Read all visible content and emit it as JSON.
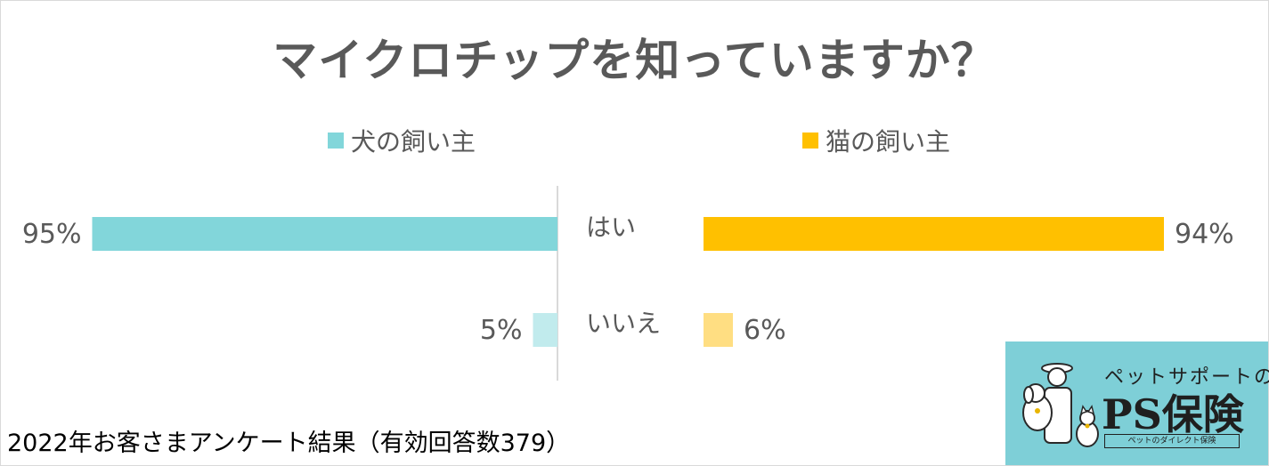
{
  "title": "マイクロチップを知っていますか？",
  "footer": "2022年お客さまアンケート結果（有効回答数379）",
  "colors": {
    "dog_yes": "#82d6da",
    "dog_no": "#c1ebed",
    "cat_yes": "#ffc000",
    "cat_no": "#ffde82",
    "text": "#595959",
    "axis": "#d9d9d9"
  },
  "logo": {
    "tagline": "ペットサポートの",
    "name": "PS保険",
    "sub": "ペットのダイレクト保険"
  },
  "chart_data": {
    "type": "bar",
    "categories": [
      "はい",
      "いいえ"
    ],
    "series": [
      {
        "name": "犬の飼い主",
        "values": [
          95,
          5
        ],
        "labels": [
          "95%",
          "5%"
        ]
      },
      {
        "name": "猫の飼い主",
        "values": [
          94,
          6
        ],
        "labels": [
          "94%",
          "6%"
        ]
      }
    ],
    "legend": "top",
    "grid": false
  }
}
